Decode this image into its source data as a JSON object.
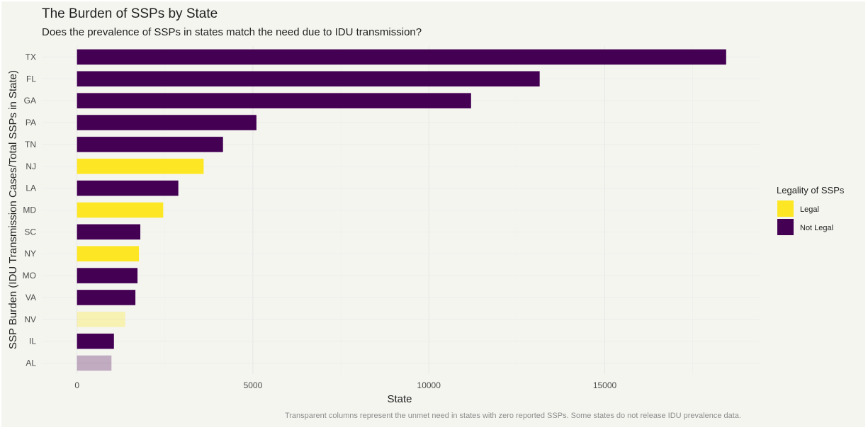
{
  "chart_data": {
    "type": "bar",
    "orientation": "horizontal",
    "title": "The Burden of SSPs by State",
    "subtitle": "Does the prevalence of SSPs in states match the need due to IDU transmission?",
    "xlabel": "State",
    "ylabel": "SSP Burden (IDU Transmission Cases/Total SSPs in State)",
    "caption": "Transparent columns represent the unmet need in states with zero reported SSPs. Some states do not release IDU prevalence data.",
    "xlim": [
      -1000,
      19400
    ],
    "xticks": [
      0,
      5000,
      10000,
      15000
    ],
    "grid": true,
    "legend": {
      "title": "Legality of SSPs",
      "position": "right",
      "entries": [
        {
          "label": "Legal",
          "color": "#FDE725"
        },
        {
          "label": "Not Legal",
          "color": "#440154"
        }
      ]
    },
    "categories": [
      "TX",
      "FL",
      "GA",
      "PA",
      "TN",
      "NJ",
      "LA",
      "MD",
      "SC",
      "NY",
      "MO",
      "VA",
      "NV",
      "IL",
      "AL"
    ],
    "values": [
      18450,
      13150,
      11200,
      5100,
      4150,
      3600,
      2880,
      2450,
      1800,
      1760,
      1720,
      1660,
      1370,
      1050,
      980
    ],
    "legality": [
      "Not Legal",
      "Not Legal",
      "Not Legal",
      "Not Legal",
      "Not Legal",
      "Legal",
      "Not Legal",
      "Legal",
      "Not Legal",
      "Legal",
      "Not Legal",
      "Not Legal",
      "Legal",
      "Not Legal",
      "Not Legal"
    ],
    "transparent": [
      false,
      false,
      false,
      false,
      false,
      false,
      false,
      false,
      false,
      false,
      false,
      false,
      true,
      false,
      true
    ]
  }
}
